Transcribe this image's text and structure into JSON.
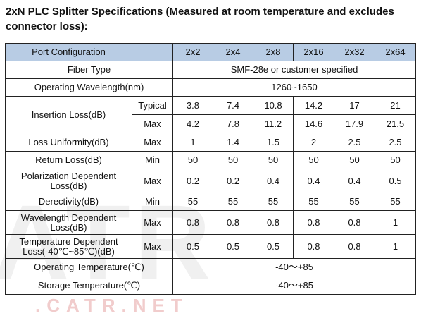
{
  "title": "2xN PLC Splitter Specifications (Measured at room temperature and excludes connector loss):",
  "watermark": {
    "big": "ATR",
    "small": ".CATR.NET"
  },
  "header": {
    "param": "Port Configuration",
    "configs": [
      "2x2",
      "2x4",
      "2x8",
      "2x16",
      "2x32",
      "2x64"
    ]
  },
  "fiber_type": {
    "label": "Fiber Type",
    "value": "SMF-28e or customer specified"
  },
  "wavelength": {
    "label": "Operating Wavelength(nm)",
    "value": "1260~1650"
  },
  "insertion_loss": {
    "label": "Insertion Loss(dB)",
    "typical": {
      "cond": "Typical",
      "values": [
        "3.8",
        "7.4",
        "10.8",
        "14.2",
        "17",
        "21"
      ]
    },
    "max": {
      "cond": "Max",
      "values": [
        "4.2",
        "7.8",
        "11.2",
        "14.6",
        "17.9",
        "21.5"
      ]
    }
  },
  "rows": [
    {
      "label": "Loss Uniformity(dB)",
      "cond": "Max",
      "values": [
        "1",
        "1.4",
        "1.5",
        "2",
        "2.5",
        "2.5"
      ]
    },
    {
      "label": "Return Loss(dB)",
      "cond": "Min",
      "values": [
        "50",
        "50",
        "50",
        "50",
        "50",
        "50"
      ]
    },
    {
      "label": "Polarization Dependent Loss(dB)",
      "cond": "Max",
      "values": [
        "0.2",
        "0.2",
        "0.4",
        "0.4",
        "0.4",
        "0.5"
      ]
    },
    {
      "label": "Derectivity(dB)",
      "cond": "Min",
      "values": [
        "55",
        "55",
        "55",
        "55",
        "55",
        "55"
      ]
    },
    {
      "label": "Wavelength Dependent Loss(dB)",
      "cond": "Max",
      "values": [
        "0.8",
        "0.8",
        "0.8",
        "0.8",
        "0.8",
        "1"
      ]
    },
    {
      "label": "Temperature Dependent Loss(-40℃~85℃)(dB)",
      "cond": "Max",
      "values": [
        "0.5",
        "0.5",
        "0.5",
        "0.8",
        "0.8",
        "1"
      ]
    }
  ],
  "operating_temp": {
    "label": "Operating Temperature(℃)",
    "value": "-40～+85"
  },
  "storage_temp": {
    "label": "Storage Temperature(℃)",
    "value": "-40～+85"
  },
  "colors": {
    "header_bg": "#b8cce4",
    "border": "#222222"
  }
}
